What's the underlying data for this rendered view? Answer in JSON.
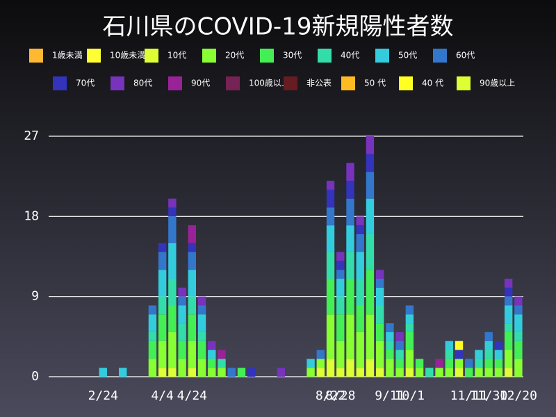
{
  "chart_data": {
    "type": "stacked-bar",
    "title": "石川県のCOVID-19新規陽性者数",
    "categories": [
      null,
      null,
      null,
      null,
      null,
      "2/24",
      null,
      null,
      null,
      null,
      null,
      "4/4",
      null,
      null,
      "4/24",
      null,
      null,
      null,
      null,
      null,
      null,
      null,
      null,
      null,
      null,
      null,
      null,
      null,
      "8/22",
      "8/28",
      null,
      null,
      null,
      null,
      "9/11",
      null,
      "10/1",
      null,
      null,
      null,
      null,
      null,
      "11/11",
      null,
      "11/30",
      null,
      null,
      "12/20"
    ],
    "ylim": [
      0,
      27
    ],
    "yticks": [
      0,
      9,
      18,
      27
    ],
    "grid": true,
    "series": [
      {
        "name": "1歳未満",
        "color": "#ffb830",
        "values": [
          0,
          0,
          0,
          0,
          0,
          0,
          0,
          0,
          0,
          0,
          0,
          0,
          0,
          0,
          0,
          0,
          0,
          0,
          0,
          0,
          0,
          0,
          0,
          0,
          0,
          0,
          0,
          0,
          0,
          0,
          0,
          0,
          0,
          0,
          0,
          0,
          0,
          0,
          0,
          0,
          0,
          0,
          0,
          0,
          0,
          0,
          0,
          0
        ]
      },
      {
        "name": "10歳未満",
        "color": "#ffff33",
        "values": [
          0,
          0,
          0,
          0,
          0,
          0,
          0,
          0,
          0,
          0,
          0,
          0,
          0,
          0,
          0,
          0,
          0,
          0,
          0,
          0,
          0,
          0,
          0,
          0,
          0,
          0,
          0,
          0,
          0,
          0,
          0,
          0,
          0,
          0,
          0,
          0,
          0,
          0,
          0,
          0,
          0,
          0,
          0,
          0,
          0,
          0,
          0,
          0
        ]
      },
      {
        "name": "10代",
        "color": "#ddff33",
        "values": [
          0,
          0,
          0,
          0,
          0,
          0,
          0,
          0,
          0,
          0,
          0,
          1,
          1,
          0,
          1,
          0,
          0,
          0,
          0,
          0,
          0,
          0,
          0,
          0,
          0,
          0,
          0,
          1,
          2,
          1,
          2,
          1,
          2,
          1,
          0,
          0,
          1,
          0,
          0,
          0,
          0,
          1,
          0,
          0,
          0,
          0,
          1,
          0
        ]
      },
      {
        "name": "20代",
        "color": "#88ff33",
        "values": [
          0,
          0,
          0,
          0,
          0,
          0,
          0,
          0,
          0,
          0,
          2,
          3,
          4,
          2,
          3,
          2,
          1,
          1,
          0,
          0,
          0,
          0,
          0,
          0,
          0,
          0,
          1,
          1,
          5,
          3,
          5,
          4,
          5,
          3,
          2,
          1,
          2,
          1,
          0,
          1,
          1,
          1,
          0,
          1,
          1,
          1,
          2,
          2
        ]
      },
      {
        "name": "30代",
        "color": "#44ee55",
        "values": [
          0,
          0,
          0,
          0,
          0,
          0,
          0,
          0,
          0,
          0,
          2,
          3,
          3,
          2,
          3,
          2,
          1,
          0,
          0,
          1,
          0,
          0,
          0,
          0,
          0,
          0,
          0,
          0,
          4,
          3,
          4,
          3,
          5,
          2,
          1,
          1,
          2,
          1,
          0,
          0,
          1,
          0,
          1,
          0,
          1,
          1,
          2,
          2
        ]
      },
      {
        "name": "40代",
        "color": "#33ddaa",
        "values": [
          0,
          0,
          0,
          0,
          0,
          0,
          0,
          0,
          0,
          0,
          1,
          2,
          3,
          2,
          2,
          1,
          0,
          1,
          0,
          0,
          0,
          0,
          0,
          0,
          0,
          0,
          0,
          0,
          3,
          2,
          3,
          3,
          4,
          2,
          1,
          1,
          1,
          0,
          1,
          0,
          1,
          0,
          0,
          1,
          1,
          0,
          1,
          1
        ]
      },
      {
        "name": "50代",
        "color": "#33ccdd",
        "values": [
          0,
          0,
          0,
          0,
          0,
          1,
          0,
          1,
          0,
          0,
          2,
          3,
          4,
          2,
          3,
          2,
          1,
          0,
          0,
          0,
          0,
          0,
          0,
          0,
          0,
          0,
          1,
          0,
          3,
          2,
          3,
          3,
          4,
          2,
          1,
          0,
          1,
          0,
          0,
          0,
          1,
          0,
          0,
          1,
          1,
          1,
          2,
          2
        ]
      },
      {
        "name": "60代",
        "color": "#3377cc",
        "values": [
          0,
          0,
          0,
          0,
          0,
          0,
          0,
          0,
          0,
          0,
          1,
          2,
          3,
          1,
          2,
          1,
          0,
          0,
          1,
          0,
          0,
          0,
          0,
          0,
          0,
          0,
          0,
          1,
          2,
          1,
          3,
          2,
          3,
          1,
          1,
          1,
          1,
          0,
          0,
          0,
          0,
          0,
          1,
          0,
          1,
          0,
          1,
          1
        ]
      },
      {
        "name": "70代",
        "color": "#3333bb",
        "values": [
          0,
          0,
          0,
          0,
          0,
          0,
          0,
          0,
          0,
          0,
          0,
          1,
          1,
          0,
          1,
          0,
          0,
          0,
          0,
          0,
          1,
          0,
          0,
          0,
          0,
          0,
          0,
          0,
          2,
          1,
          2,
          1,
          2,
          0,
          0,
          0,
          0,
          0,
          0,
          0,
          0,
          1,
          0,
          0,
          0,
          1,
          1,
          0
        ]
      },
      {
        "name": "80代",
        "color": "#7733bb",
        "values": [
          0,
          0,
          0,
          0,
          0,
          0,
          0,
          0,
          0,
          0,
          0,
          0,
          1,
          1,
          0,
          1,
          1,
          0,
          0,
          0,
          0,
          0,
          0,
          1,
          0,
          0,
          0,
          0,
          1,
          1,
          2,
          1,
          2,
          1,
          0,
          1,
          0,
          0,
          0,
          0,
          0,
          0,
          0,
          0,
          0,
          0,
          1,
          1
        ]
      },
      {
        "name": "90代",
        "color": "#992299",
        "values": [
          0,
          0,
          0,
          0,
          0,
          0,
          0,
          0,
          0,
          0,
          0,
          0,
          0,
          0,
          2,
          0,
          0,
          1,
          0,
          0,
          0,
          0,
          0,
          0,
          0,
          0,
          0,
          0,
          0,
          0,
          0,
          0,
          0,
          0,
          0,
          0,
          0,
          0,
          0,
          1,
          0,
          0,
          0,
          0,
          0,
          0,
          0,
          0
        ]
      },
      {
        "name": "100歳以上",
        "color": "#772255",
        "values": [
          0,
          0,
          0,
          0,
          0,
          0,
          0,
          0,
          0,
          0,
          0,
          0,
          0,
          0,
          0,
          0,
          0,
          0,
          0,
          0,
          0,
          0,
          0,
          0,
          0,
          0,
          0,
          0,
          0,
          0,
          0,
          0,
          0,
          0,
          0,
          0,
          0,
          0,
          0,
          0,
          0,
          0,
          0,
          0,
          0,
          0,
          0,
          0
        ]
      },
      {
        "name": "非公表",
        "color": "#661c22",
        "values": [
          0,
          0,
          0,
          0,
          0,
          0,
          0,
          0,
          0,
          0,
          0,
          0,
          0,
          0,
          0,
          0,
          0,
          0,
          0,
          0,
          0,
          0,
          0,
          0,
          0,
          0,
          0,
          0,
          0,
          0,
          0,
          0,
          0,
          0,
          0,
          0,
          0,
          0,
          0,
          0,
          0,
          0,
          0,
          0,
          0,
          0,
          0,
          0
        ]
      },
      {
        "name": "50 代",
        "color": "#ffbb22",
        "values": [
          0,
          0,
          0,
          0,
          0,
          0,
          0,
          0,
          0,
          0,
          0,
          0,
          0,
          0,
          0,
          0,
          0,
          0,
          0,
          0,
          0,
          0,
          0,
          0,
          0,
          0,
          0,
          0,
          0,
          0,
          0,
          0,
          0,
          0,
          0,
          0,
          0,
          0,
          0,
          0,
          0,
          0,
          0,
          0,
          0,
          0,
          0,
          0
        ]
      },
      {
        "name": "40 代",
        "color": "#ffff22",
        "values": [
          0,
          0,
          0,
          0,
          0,
          0,
          0,
          0,
          0,
          0,
          0,
          0,
          0,
          0,
          0,
          0,
          0,
          0,
          0,
          0,
          0,
          0,
          0,
          0,
          0,
          0,
          0,
          0,
          0,
          0,
          0,
          0,
          0,
          0,
          0,
          0,
          0,
          0,
          0,
          0,
          0,
          1,
          0,
          0,
          0,
          0,
          0,
          0
        ]
      },
      {
        "name": "90歳以上",
        "color": "#ddff33",
        "values": [
          0,
          0,
          0,
          0,
          0,
          0,
          0,
          0,
          0,
          0,
          0,
          0,
          0,
          0,
          0,
          0,
          0,
          0,
          0,
          0,
          0,
          0,
          0,
          0,
          0,
          0,
          0,
          0,
          0,
          0,
          0,
          0,
          0,
          0,
          0,
          0,
          0,
          0,
          0,
          0,
          0,
          0,
          0,
          0,
          0,
          0,
          0,
          0
        ]
      }
    ]
  }
}
